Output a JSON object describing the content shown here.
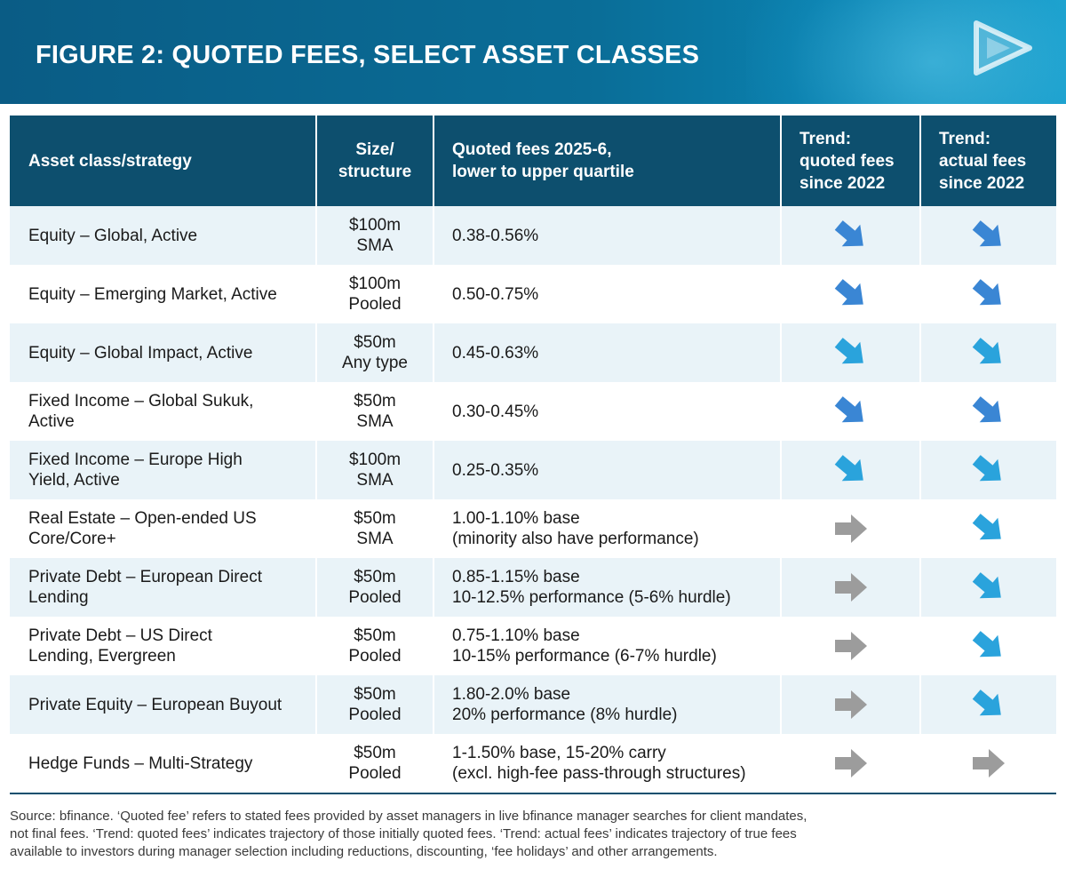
{
  "header": {
    "title": "FIGURE 2: QUOTED FEES, SELECT ASSET CLASSES"
  },
  "table": {
    "columns": {
      "asset": "Asset class/strategy",
      "size_l1": "Size/",
      "size_l2": "structure",
      "fees_l1": "Quoted fees 2025-6,",
      "fees_l2": "lower to upper quartile",
      "tq_l1": "Trend:",
      "tq_l2": "quoted fees",
      "tq_l3": "since 2022",
      "ta_l1": "Trend:",
      "ta_l2": "actual fees",
      "ta_l3": "since 2022"
    },
    "rows": [
      {
        "asset_l1": "Equity – Global, Active",
        "asset_l2": "",
        "size_l1": "$100m",
        "size_l2": "SMA",
        "fees_l1": "0.38-0.56%",
        "fees_l2": "",
        "trend_quoted": "down",
        "trend_actual": "down"
      },
      {
        "asset_l1": "Equity – Emerging Market, Active",
        "asset_l2": "",
        "size_l1": "$100m",
        "size_l2": "Pooled",
        "fees_l1": "0.50-0.75%",
        "fees_l2": "",
        "trend_quoted": "down",
        "trend_actual": "down"
      },
      {
        "asset_l1": "Equity – Global Impact, Active",
        "asset_l2": "",
        "size_l1": "$50m",
        "size_l2": "Any type",
        "fees_l1": "0.45-0.63%",
        "fees_l2": "",
        "trend_quoted": "down-light",
        "trend_actual": "down-light"
      },
      {
        "asset_l1": "Fixed Income – Global Sukuk,",
        "asset_l2": "Active",
        "size_l1": "$50m",
        "size_l2": "SMA",
        "fees_l1": "0.30-0.45%",
        "fees_l2": "",
        "trend_quoted": "down",
        "trend_actual": "down"
      },
      {
        "asset_l1": "Fixed Income – Europe High",
        "asset_l2": "Yield, Active",
        "size_l1": "$100m",
        "size_l2": "SMA",
        "fees_l1": "0.25-0.35%",
        "fees_l2": "",
        "trend_quoted": "down-light",
        "trend_actual": "down-light"
      },
      {
        "asset_l1": "Real Estate – Open-ended US",
        "asset_l2": "Core/Core+",
        "size_l1": "$50m",
        "size_l2": "SMA",
        "fees_l1": "1.00-1.10% base",
        "fees_l2": "(minority also have performance)",
        "trend_quoted": "flat",
        "trend_actual": "down-light"
      },
      {
        "asset_l1": "Private Debt – European Direct",
        "asset_l2": "Lending",
        "size_l1": "$50m",
        "size_l2": "Pooled",
        "fees_l1": "0.85-1.15% base",
        "fees_l2": "10-12.5% performance (5-6% hurdle)",
        "trend_quoted": "flat",
        "trend_actual": "down-light"
      },
      {
        "asset_l1": "Private Debt – US Direct",
        "asset_l2": "Lending, Evergreen",
        "size_l1": "$50m",
        "size_l2": "Pooled",
        "fees_l1": "0.75-1.10% base",
        "fees_l2": "10-15% performance (6-7% hurdle)",
        "trend_quoted": "flat",
        "trend_actual": "down-light"
      },
      {
        "asset_l1": "Private Equity – European Buyout",
        "asset_l2": "",
        "size_l1": "$50m",
        "size_l2": "Pooled",
        "fees_l1": "1.80-2.0% base",
        "fees_l2": "20% performance (8% hurdle)",
        "trend_quoted": "flat",
        "trend_actual": "down-light"
      },
      {
        "asset_l1": "Hedge Funds – Multi-Strategy",
        "asset_l2": "",
        "size_l1": "$50m",
        "size_l2": "Pooled",
        "fees_l1": "1-1.50% base, 15-20% carry",
        "fees_l2": "(excl. high-fee pass-through structures)",
        "trend_quoted": "flat",
        "trend_actual": "flat"
      }
    ]
  },
  "source": {
    "line1": "Source: bfinance. ‘Quoted fee’ refers to stated fees provided by asset managers in live bfinance manager searches for client mandates,",
    "line2": "not final fees. ‘Trend: quoted fees’ indicates trajectory of those initially quoted fees. ‘Trend: actual fees’ indicates trajectory of true fees",
    "line3": "available to investors during manager selection including reductions, discounting, ‘fee holidays’ and other arrangements."
  },
  "colors": {
    "header_bg": "#0d4f6e",
    "row_alt": "#e9f3f8",
    "arrow_down": "#3a86d4",
    "arrow_down_light": "#2aa3dc",
    "arrow_flat": "#9c9c9c"
  },
  "icons": {
    "down": "arrow-down-right-icon",
    "down-light": "arrow-down-right-icon",
    "flat": "arrow-right-icon"
  }
}
